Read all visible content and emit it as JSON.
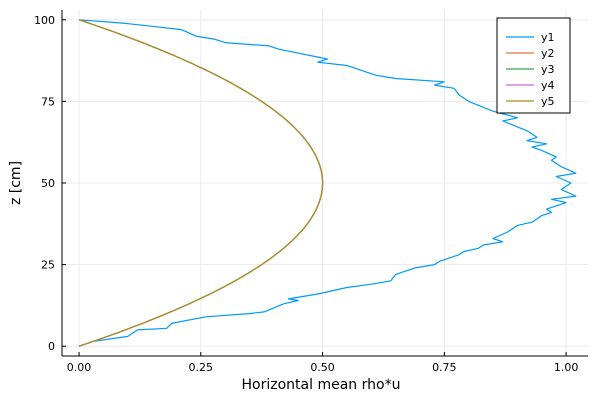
{
  "chart_data": {
    "type": "line",
    "xlabel": "Horizontal mean rho*u",
    "ylabel": "z [cm]",
    "xlim": [
      -0.035,
      1.045
    ],
    "ylim": [
      -3,
      103
    ],
    "xticks": [
      0.0,
      0.25,
      0.5,
      0.75,
      1.0
    ],
    "xtick_labels": [
      "0.00",
      "0.25",
      "0.50",
      "0.75",
      "1.00"
    ],
    "yticks": [
      0,
      25,
      50,
      75,
      100
    ],
    "ytick_labels": [
      "0",
      "25",
      "50",
      "75",
      "100"
    ],
    "grid": true,
    "legend_position": "top-right",
    "series": [
      {
        "name": "y1",
        "color": "#009AFA",
        "x": [
          0.0,
          0.03,
          0.1,
          0.12,
          0.18,
          0.19,
          0.26,
          0.35,
          0.38,
          0.42,
          0.45,
          0.43,
          0.49,
          0.55,
          0.6,
          0.64,
          0.65,
          0.69,
          0.73,
          0.74,
          0.78,
          0.79,
          0.82,
          0.83,
          0.87,
          0.85,
          0.88,
          0.9,
          0.93,
          0.95,
          0.97,
          0.96,
          1.0,
          0.97,
          1.02,
          0.99,
          1.01,
          0.98,
          1.02,
          0.99,
          0.97,
          0.98,
          0.95,
          0.93,
          0.96,
          0.92,
          0.94,
          0.92,
          0.87,
          0.9,
          0.85,
          0.8,
          0.78,
          0.77,
          0.73,
          0.75,
          0.65,
          0.61,
          0.57,
          0.55,
          0.49,
          0.51,
          0.41,
          0.39,
          0.3,
          0.28,
          0.24,
          0.21,
          0.15,
          0.09,
          0.0
        ],
        "y": [
          0,
          1.5,
          3,
          5,
          5.5,
          7,
          9,
          10,
          10.5,
          13,
          14,
          14.5,
          16,
          18,
          19,
          20,
          22,
          24,
          25,
          26,
          28,
          29,
          30,
          31,
          32,
          33,
          35,
          37,
          38,
          40,
          41,
          42,
          44,
          45,
          46,
          48,
          50,
          52,
          53,
          55,
          57,
          58,
          60,
          61,
          62,
          63,
          64,
          66,
          69,
          70,
          72,
          75,
          77,
          79,
          80,
          81,
          82,
          83,
          85,
          86,
          87,
          88,
          91,
          92,
          93,
          94,
          95,
          97,
          98,
          99,
          100
        ]
      },
      {
        "name": "y2",
        "color": "#E26F46",
        "profile": "parabolic",
        "amplitude": 0.5,
        "height": 100
      },
      {
        "name": "y3",
        "color": "#3DA44D",
        "profile": "parabolic",
        "amplitude": 0.5,
        "height": 100
      },
      {
        "name": "y4",
        "color": "#C271D2",
        "profile": "parabolic",
        "amplitude": 0.5,
        "height": 100
      },
      {
        "name": "y5",
        "color": "#AC8D18",
        "profile": "parabolic",
        "amplitude": 0.5,
        "height": 100
      }
    ]
  }
}
